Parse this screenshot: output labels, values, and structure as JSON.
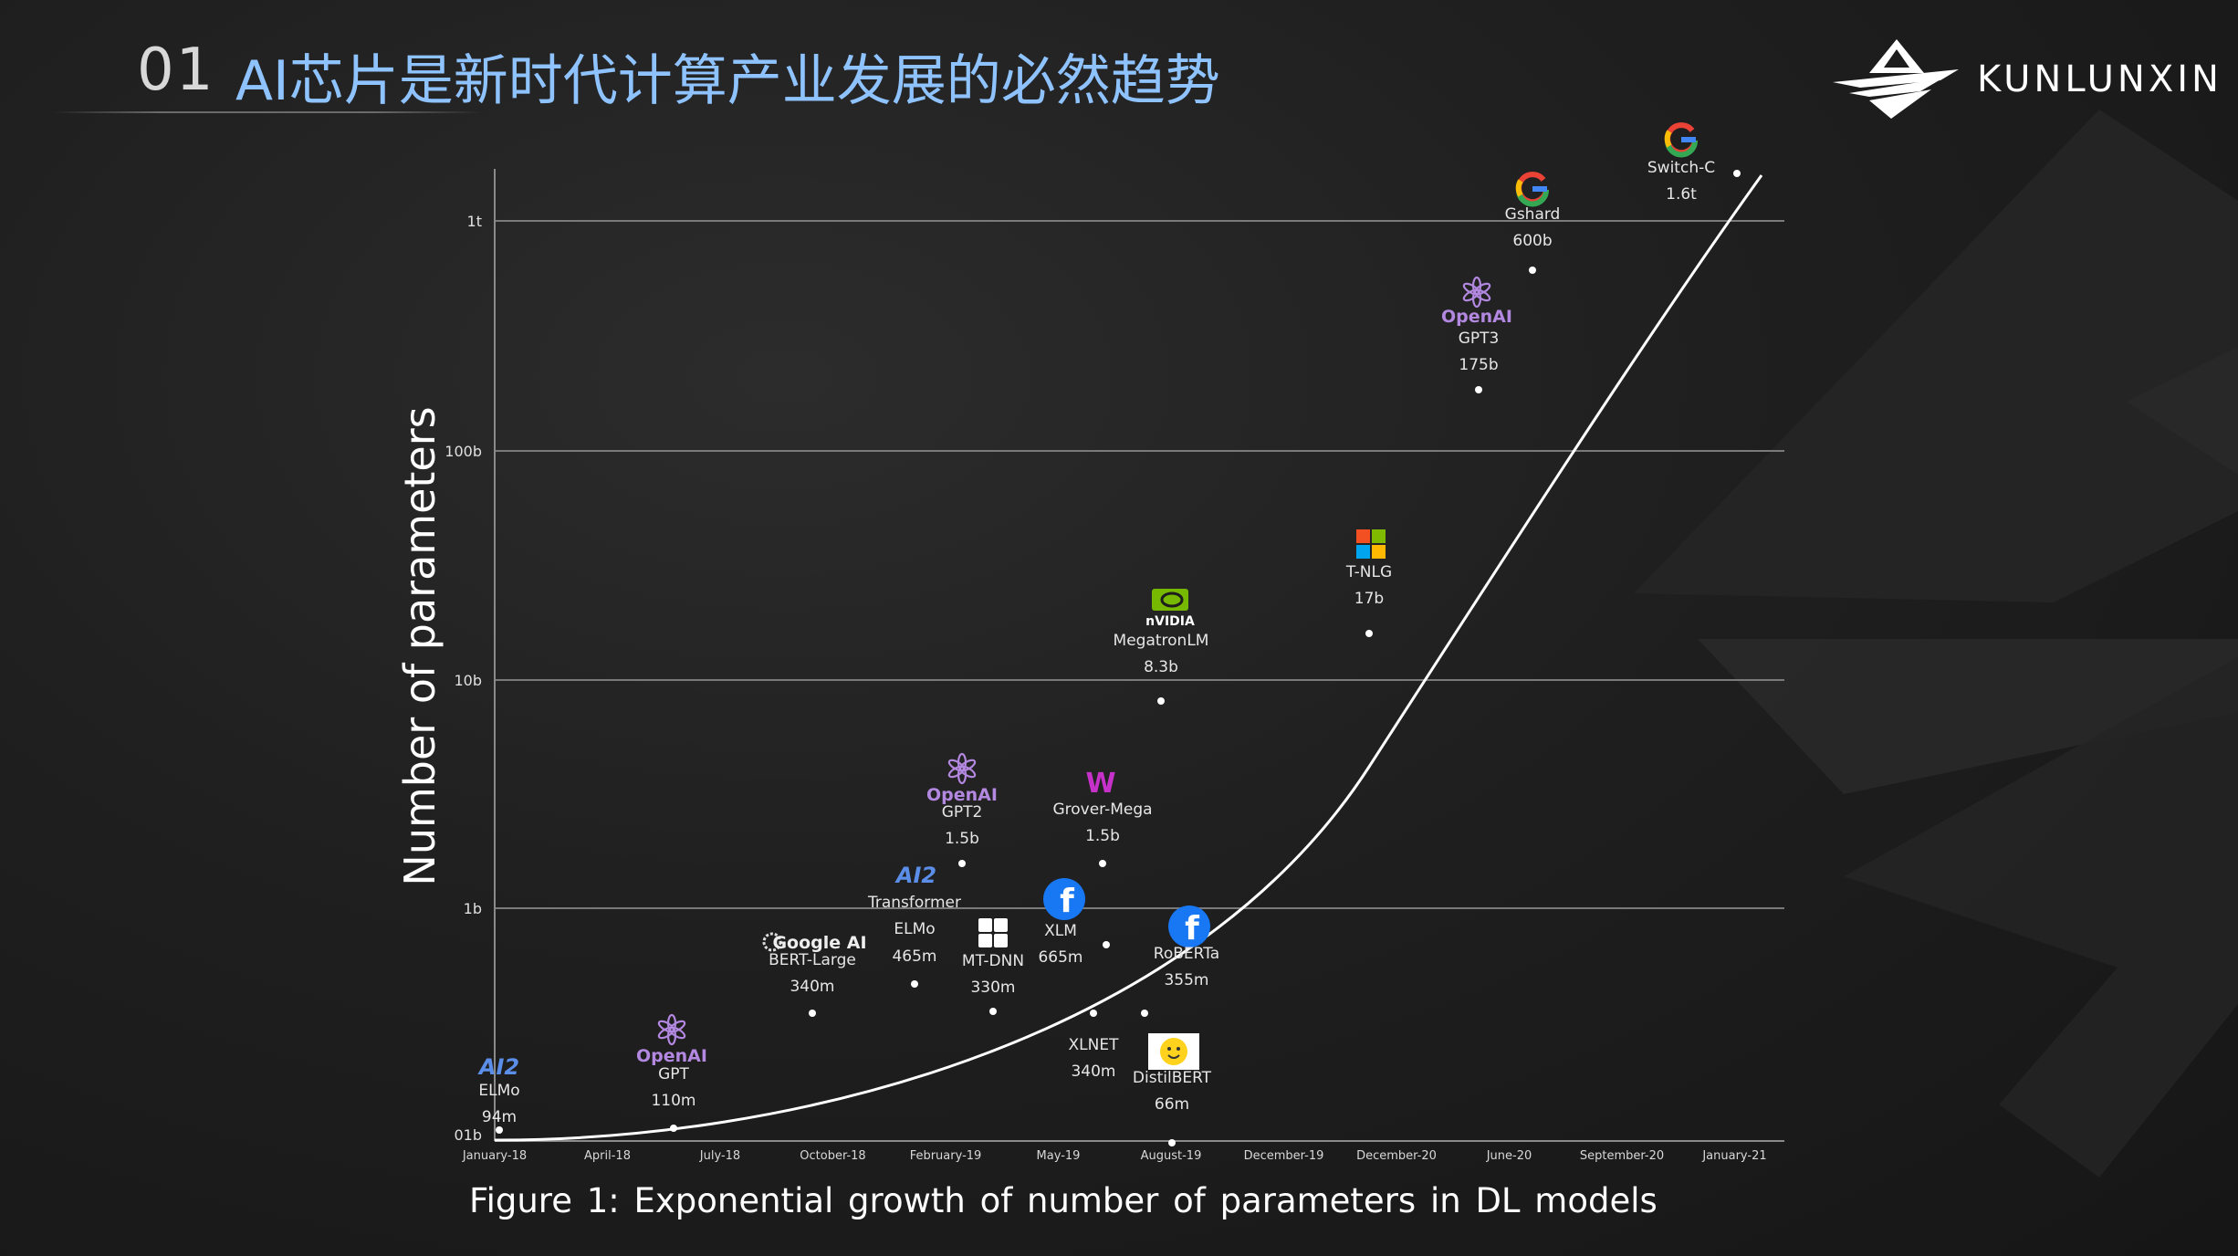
{
  "header": {
    "section_number": "01",
    "title": "AI芯片是新时代计算产业发展的必然趋势"
  },
  "brand": {
    "name": "KUNLUNXIN",
    "logo_icon": "kunlunxin-mountain-logo-icon"
  },
  "colors": {
    "title_blue": "#8fc3ff",
    "openai_purple": "#b388e0",
    "ai2_blue": "#5b8ee8",
    "facebook_blue": "#1877f2",
    "nvidia_green": "#76b900",
    "grover_purple": "#c531c9",
    "curve": "#ffffff",
    "grid": "#7a7a7a"
  },
  "chart_data": {
    "type": "scatter",
    "title": "",
    "caption": "Figure  1: Exponential growth of number of parameters in DL models",
    "xlabel": "",
    "ylabel": "Number of parameters",
    "y_scale": "log",
    "y_ticks": [
      "01b",
      "1b",
      "10b",
      "100b",
      "1t"
    ],
    "x_ticks": [
      "January-18",
      "April-18",
      "July-18",
      "October-18",
      "February-19",
      "May-19",
      "August-19",
      "December-19",
      "December-20",
      "June-20",
      "September-20",
      "January-21"
    ],
    "grid": "horizontal",
    "trend": "exponential",
    "series": [
      {
        "points": [
          {
            "model": "ELMo",
            "params": "94m",
            "org": "AI2",
            "icon": "ai2-logo-icon",
            "x_index": 0.0,
            "y": 0.094
          },
          {
            "model": "GPT",
            "params": "110m",
            "org": "OpenAI",
            "icon": "openai-logo-icon",
            "x_index": 1.6,
            "y": 0.11
          },
          {
            "model": "BERT-Large",
            "params": "340m",
            "org": "Google AI",
            "icon": "google-ai-logo-icon",
            "x_index": 2.8,
            "y": 0.34
          },
          {
            "model": "Transformer ELMo",
            "params": "465m",
            "org": "AI2",
            "icon": "ai2-logo-icon",
            "x_index": 3.65,
            "y": 0.465
          },
          {
            "model": "GPT2",
            "params": "1.5b",
            "org": "OpenAI",
            "icon": "openai-logo-icon",
            "x_index": 4.1,
            "y": 1.5
          },
          {
            "model": "MT-DNN",
            "params": "330m",
            "org": "Microsoft",
            "icon": "microsoft-logo-icon",
            "x_index": 4.35,
            "y": 0.33
          },
          {
            "model": "XLM",
            "params": "665m",
            "org": "Facebook",
            "icon": "facebook-logo-icon",
            "x_index": 5.35,
            "y": 0.665
          },
          {
            "model": "Grover-Mega",
            "params": "1.5b",
            "org": "Grover",
            "icon": "grover-logo-icon",
            "x_index": 5.3,
            "y": 1.5
          },
          {
            "model": "XLNET",
            "params": "340m",
            "org": "",
            "icon": "",
            "x_index": 5.25,
            "y": 0.34
          },
          {
            "model": "RoBERTa",
            "params": "355m",
            "org": "Facebook",
            "icon": "facebook-logo-icon",
            "x_index": 5.7,
            "y": 0.355
          },
          {
            "model": "DistilBERT",
            "params": "66m",
            "org": "Hugging Face",
            "icon": "hugging-face-logo-icon",
            "x_index": 6.0,
            "y": 0.066
          },
          {
            "model": "MegatronLM",
            "params": "8.3b",
            "org": "NVIDIA",
            "icon": "nvidia-logo-icon",
            "x_index": 5.95,
            "y": 8.3
          },
          {
            "model": "T-NLG",
            "params": "17b",
            "org": "Microsoft",
            "icon": "microsoft-logo-icon",
            "x_index": 7.8,
            "y": 17
          },
          {
            "model": "GPT3",
            "params": "175b",
            "org": "OpenAI",
            "icon": "openai-logo-icon",
            "x_index": 8.65,
            "y": 175
          },
          {
            "model": "Gshard",
            "params": "600b",
            "org": "Google",
            "icon": "google-logo-icon",
            "x_index": 9.1,
            "y": 600
          },
          {
            "model": "Switch-C",
            "params": "1.6t",
            "org": "Google",
            "icon": "google-logo-icon",
            "x_index": 11.0,
            "y": 1600
          }
        ]
      }
    ]
  }
}
